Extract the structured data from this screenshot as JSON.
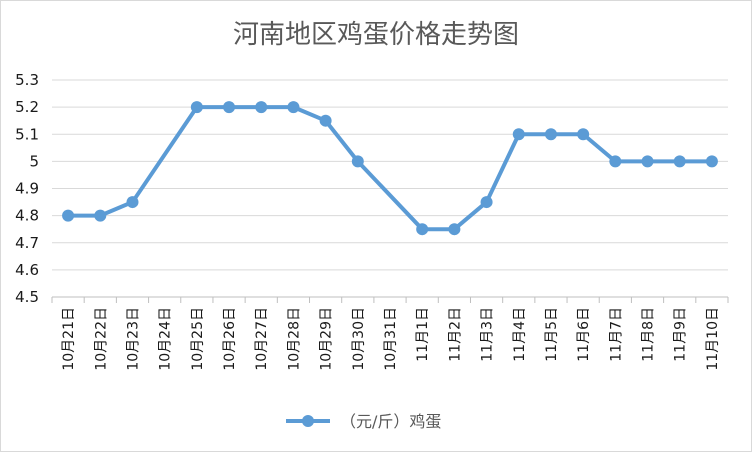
{
  "chart_data": {
    "type": "line",
    "title": "河南地区鸡蛋价格走势图",
    "xlabel": "",
    "ylabel": "",
    "categories": [
      "10月21日",
      "10月22日",
      "10月23日",
      "10月24日",
      "10月25日",
      "10月26日",
      "10月27日",
      "10月28日",
      "10月29日",
      "10月30日",
      "10月31日",
      "11月1日",
      "11月2日",
      "11月3日",
      "11月4日",
      "11月5日",
      "11月6日",
      "11月7日",
      "11月8日",
      "11月9日",
      "11月10日"
    ],
    "series": [
      {
        "name": "（元/斤）鸡蛋",
        "color": "#5b9bd5",
        "values": [
          4.8,
          4.8,
          4.85,
          null,
          5.2,
          5.2,
          5.2,
          5.2,
          5.15,
          5.0,
          null,
          4.75,
          4.75,
          4.85,
          5.1,
          5.1,
          5.1,
          5.0,
          5.0,
          5.0,
          5.0
        ]
      }
    ],
    "ylim": [
      4.5,
      5.3
    ],
    "yticks": [
      4.5,
      4.6,
      4.7,
      4.8,
      4.9,
      5,
      5.1,
      5.2,
      5.3
    ],
    "grid": true,
    "legend": "bottom",
    "colors": {
      "grid": "#d9d9d9",
      "axis": "#bfbfbf"
    }
  }
}
